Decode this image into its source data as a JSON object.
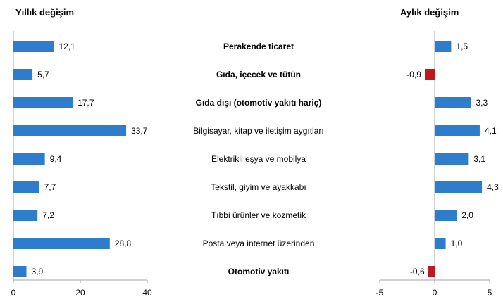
{
  "chart_data": [
    {
      "type": "bar",
      "orientation": "horizontal",
      "title": "Yıllık değişim",
      "categories": [
        "Perakende ticaret",
        "Gıda, içecek ve tütün",
        "Gıda dışı (otomotiv yakıtı hariç)",
        "Bilgisayar, kitap ve iletişim aygıtları",
        "Elektrikli eşya ve mobilya",
        "Tekstil, giyim ve ayakkabı",
        "Tıbbi ürünler ve kozmetik",
        "Posta veya internet üzerinden",
        "Otomotiv yakıtı"
      ],
      "bold_categories": [
        0,
        1,
        2,
        8
      ],
      "values": [
        12.1,
        5.7,
        17.7,
        33.7,
        9.4,
        7.7,
        7.2,
        28.8,
        3.9
      ],
      "value_labels": [
        "12,1",
        "5,7",
        "17,7",
        "33,7",
        "9,4",
        "7,7",
        "7,2",
        "28,8",
        "3,9"
      ],
      "xlim": [
        0,
        40
      ],
      "xticks": [
        0,
        20,
        40
      ],
      "xtick_labels": [
        "0",
        "20",
        "40"
      ],
      "bar_color": "#2e7dcc",
      "grid": false
    },
    {
      "type": "bar",
      "orientation": "horizontal",
      "title": "Aylık değişim",
      "categories": [
        "Perakende ticaret",
        "Gıda, içecek ve tütün",
        "Gıda dışı (otomotiv yakıtı hariç)",
        "Bilgisayar, kitap ve iletişim aygıtları",
        "Elektrikli eşya ve mobilya",
        "Tekstil, giyim ve ayakkabı",
        "Tıbbi ürünler ve kozmetik",
        "Posta veya internet üzerinden",
        "Otomotiv yakıtı"
      ],
      "values": [
        1.5,
        -0.9,
        3.3,
        4.1,
        3.1,
        4.3,
        2.0,
        1.0,
        -0.6
      ],
      "value_labels": [
        "1,5",
        "-0,9",
        "3,3",
        "4,1",
        "3,1",
        "4,3",
        "2,0",
        "1,0",
        "-0,6"
      ],
      "xlim": [
        -5,
        5
      ],
      "xticks": [
        -5,
        0,
        5
      ],
      "xtick_labels": [
        "-5",
        "0",
        "5"
      ],
      "positive_color": "#2e7dcc",
      "negative_color": "#c0181e",
      "grid": false
    }
  ]
}
